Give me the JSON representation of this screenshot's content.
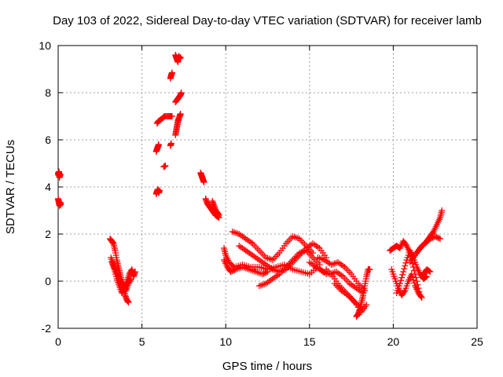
{
  "chart_data": {
    "type": "scatter",
    "title": "Day 103 of 2022, Sidereal Day-to-day VTEC variation (SDTVAR) for receiver lamb",
    "xlabel": "GPS time / hours",
    "ylabel": "SDTVAR / TECUs",
    "xlim": [
      0,
      25
    ],
    "ylim": [
      -2,
      10
    ],
    "xticks": [
      0,
      5,
      10,
      15,
      20,
      25
    ],
    "yticks": [
      -2,
      0,
      2,
      4,
      6,
      8,
      10
    ],
    "grid": true,
    "marker": "+",
    "color": "#ff0000",
    "series": [
      {
        "name": "s1",
        "x": [
          0.0,
          0.02,
          0.05,
          0.08,
          0.1,
          0.12
        ],
        "y": [
          4.6,
          4.5,
          4.65,
          4.4,
          4.55,
          4.5
        ]
      },
      {
        "name": "s2",
        "x": [
          0.0,
          0.03,
          0.06,
          0.09,
          0.12,
          0.15
        ],
        "y": [
          3.5,
          3.4,
          3.3,
          3.2,
          3.35,
          3.25
        ]
      },
      {
        "name": "s3",
        "x": [
          3.1,
          3.2,
          3.3,
          3.4,
          3.5,
          3.6,
          3.7,
          3.8,
          3.9,
          4.0,
          4.1,
          4.2
        ],
        "y": [
          1.8,
          1.7,
          1.6,
          1.3,
          0.9,
          0.6,
          0.3,
          0.0,
          -0.3,
          -0.6,
          -0.8,
          -0.9
        ]
      },
      {
        "name": "s4",
        "x": [
          3.2,
          3.35,
          3.5,
          3.65,
          3.8,
          3.95,
          4.1,
          4.25,
          4.4,
          4.5,
          4.6
        ],
        "y": [
          0.8,
          0.5,
          0.1,
          -0.2,
          -0.5,
          -0.3,
          0.0,
          0.3,
          0.5,
          0.2,
          0.4
        ]
      },
      {
        "name": "s5",
        "x": [
          3.15,
          3.3,
          3.45,
          3.6,
          3.75,
          3.9,
          4.05,
          4.2,
          4.35
        ],
        "y": [
          1.0,
          0.7,
          0.4,
          0.2,
          0.0,
          -0.2,
          -0.4,
          -0.1,
          0.1
        ]
      },
      {
        "name": "s6",
        "x": [
          5.85,
          5.9,
          5.95,
          6.0,
          6.05
        ],
        "y": [
          3.7,
          3.8,
          3.9,
          3.75,
          3.85
        ]
      },
      {
        "name": "s7",
        "x": [
          5.85,
          5.9,
          5.95,
          6.0
        ],
        "y": [
          5.5,
          5.6,
          5.7,
          5.8
        ]
      },
      {
        "name": "s8",
        "x": [
          5.9,
          6.0,
          6.2,
          6.35,
          6.6,
          6.8
        ],
        "y": [
          6.7,
          6.8,
          6.9,
          7.0,
          7.0,
          7.0
        ]
      },
      {
        "name": "s9",
        "x": [
          6.3,
          6.4
        ],
        "y": [
          4.85,
          4.9
        ]
      },
      {
        "name": "s10",
        "x": [
          6.7,
          6.75
        ],
        "y": [
          5.75,
          5.85
        ]
      },
      {
        "name": "s11",
        "x": [
          6.7,
          6.75,
          6.8
        ],
        "y": [
          8.6,
          8.75,
          8.85
        ]
      },
      {
        "name": "s12",
        "x": [
          7.0,
          7.05,
          7.1,
          7.15,
          7.2,
          7.3,
          7.25
        ],
        "y": [
          6.2,
          6.4,
          6.6,
          6.8,
          6.9,
          7.1,
          7.0
        ]
      },
      {
        "name": "s13",
        "x": [
          7.0,
          7.1,
          7.2,
          7.3,
          7.35
        ],
        "y": [
          7.6,
          7.7,
          7.8,
          7.9,
          8.0
        ]
      },
      {
        "name": "s14",
        "x": [
          7.0,
          7.05,
          7.1,
          7.15,
          7.2,
          7.25,
          7.3
        ],
        "y": [
          9.6,
          9.5,
          9.4,
          9.3,
          9.55,
          9.45,
          9.5
        ]
      },
      {
        "name": "s15",
        "x": [
          8.5,
          8.55,
          8.6,
          8.65,
          8.7
        ],
        "y": [
          4.6,
          4.5,
          4.4,
          4.3,
          4.2
        ]
      },
      {
        "name": "s16",
        "x": [
          8.8,
          8.9,
          9.0,
          9.1,
          9.2,
          9.3,
          9.4,
          9.5,
          9.6
        ],
        "y": [
          3.5,
          3.3,
          3.2,
          3.1,
          3.0,
          2.9,
          2.8,
          2.75,
          2.7
        ]
      },
      {
        "name": "s17",
        "x": [
          9.2,
          9.3,
          9.4,
          9.5,
          9.6
        ],
        "y": [
          3.4,
          3.2,
          3.0,
          2.9,
          2.8
        ]
      },
      {
        "name": "s18",
        "x": [
          9.9,
          10.0,
          10.2,
          10.5,
          11.0,
          11.5,
          12.0,
          12.5,
          13.0,
          13.5,
          14.0,
          14.5,
          15.0,
          15.5,
          16.0
        ],
        "y": [
          1.4,
          1.1,
          0.8,
          0.6,
          0.7,
          0.6,
          0.6,
          0.5,
          0.6,
          0.7,
          0.5,
          0.4,
          0.3,
          0.6,
          0.3
        ]
      },
      {
        "name": "s19",
        "x": [
          9.9,
          10.1,
          10.3,
          10.6,
          11.0,
          11.4,
          11.8,
          12.2,
          12.5
        ],
        "y": [
          0.9,
          0.6,
          0.4,
          0.5,
          0.6,
          0.5,
          0.4,
          0.3,
          0.4
        ]
      },
      {
        "name": "s20",
        "x": [
          10.4,
          10.8,
          11.2,
          11.6,
          12.0,
          12.4,
          12.8,
          13.2,
          13.6,
          14.0,
          14.4,
          14.8,
          15.2
        ],
        "y": [
          2.1,
          2.0,
          1.8,
          1.6,
          1.3,
          1.0,
          0.9,
          1.2,
          1.6,
          1.9,
          1.8,
          1.5,
          1.2
        ]
      },
      {
        "name": "s21",
        "x": [
          10.8,
          11.2,
          11.6,
          12.0,
          12.4,
          12.8,
          13.2,
          13.6,
          14.0,
          14.4,
          14.8,
          15.2,
          15.6,
          16.0
        ],
        "y": [
          1.5,
          1.3,
          1.1,
          0.9,
          0.7,
          0.5,
          0.4,
          0.5,
          0.8,
          1.1,
          1.4,
          1.6,
          1.4,
          1.0
        ]
      },
      {
        "name": "s22",
        "x": [
          12.0,
          12.4,
          12.8,
          13.2,
          13.6,
          14.0,
          14.4,
          14.8,
          15.2,
          15.6
        ],
        "y": [
          -0.2,
          -0.1,
          0.1,
          0.3,
          0.6,
          0.9,
          1.2,
          1.3,
          1.0,
          0.7
        ]
      },
      {
        "name": "s23",
        "x": [
          15.0,
          15.4,
          15.8,
          16.2,
          16.6,
          17.0,
          17.4,
          17.8,
          18.2
        ],
        "y": [
          0.8,
          0.6,
          0.4,
          0.3,
          0.4,
          0.2,
          -0.1,
          -0.3,
          -0.5
        ]
      },
      {
        "name": "s24",
        "x": [
          15.5,
          15.9,
          16.3,
          16.7,
          17.1,
          17.5,
          17.9,
          18.3
        ],
        "y": [
          1.0,
          0.9,
          0.7,
          0.8,
          0.6,
          0.3,
          -0.1,
          -0.4
        ]
      },
      {
        "name": "s25",
        "x": [
          16.0,
          16.4,
          16.8,
          17.2,
          17.6,
          18.0
        ],
        "y": [
          0.5,
          0.2,
          -0.2,
          -0.5,
          -0.8,
          -1.1
        ]
      },
      {
        "name": "s26",
        "x": [
          16.5,
          16.9,
          17.3,
          17.7,
          18.1,
          18.4
        ],
        "y": [
          -0.1,
          -0.4,
          -0.6,
          -0.9,
          -1.3,
          -1.0
        ]
      },
      {
        "name": "s27",
        "x": [
          17.8,
          17.9,
          18.0,
          18.1,
          18.2,
          18.3,
          18.4,
          18.5,
          18.6
        ],
        "y": [
          -1.5,
          -1.4,
          -1.2,
          -0.9,
          -0.6,
          -0.2,
          0.2,
          0.5,
          0.5
        ]
      },
      {
        "name": "s28",
        "x": [
          19.8,
          20.0,
          20.2,
          20.4,
          20.6,
          20.8,
          21.0,
          21.2,
          21.4,
          21.6
        ],
        "y": [
          1.3,
          1.4,
          1.5,
          1.4,
          1.7,
          1.5,
          1.2,
          0.6,
          0.0,
          -0.6
        ]
      },
      {
        "name": "s29",
        "x": [
          19.9,
          20.1,
          20.3,
          20.5,
          20.7,
          20.9,
          21.1,
          21.3,
          21.5,
          21.7
        ],
        "y": [
          0.5,
          0.1,
          -0.3,
          -0.6,
          -0.4,
          0.0,
          0.3,
          -0.2,
          -0.5,
          -0.7
        ]
      },
      {
        "name": "s30",
        "x": [
          20.2,
          20.4,
          20.6,
          20.8,
          21.0,
          21.2,
          21.4,
          21.6,
          21.8,
          22.0
        ],
        "y": [
          -0.5,
          -0.1,
          0.4,
          0.9,
          1.3,
          1.0,
          0.6,
          0.3,
          0.1,
          0.2
        ]
      },
      {
        "name": "s31",
        "x": [
          21.0,
          21.3,
          21.6,
          21.9,
          22.2,
          22.5,
          22.8
        ],
        "y": [
          0.8,
          1.1,
          1.4,
          1.6,
          1.8,
          1.9,
          1.8
        ]
      },
      {
        "name": "s32",
        "x": [
          21.4,
          21.7,
          22.0,
          22.2,
          22.4,
          22.6,
          22.8,
          22.9
        ],
        "y": [
          1.2,
          1.5,
          1.7,
          1.9,
          2.1,
          2.4,
          2.7,
          3.0
        ]
      },
      {
        "name": "s33",
        "x": [
          21.8,
          22.0,
          22.2
        ],
        "y": [
          0.3,
          0.5,
          0.4
        ]
      }
    ]
  }
}
